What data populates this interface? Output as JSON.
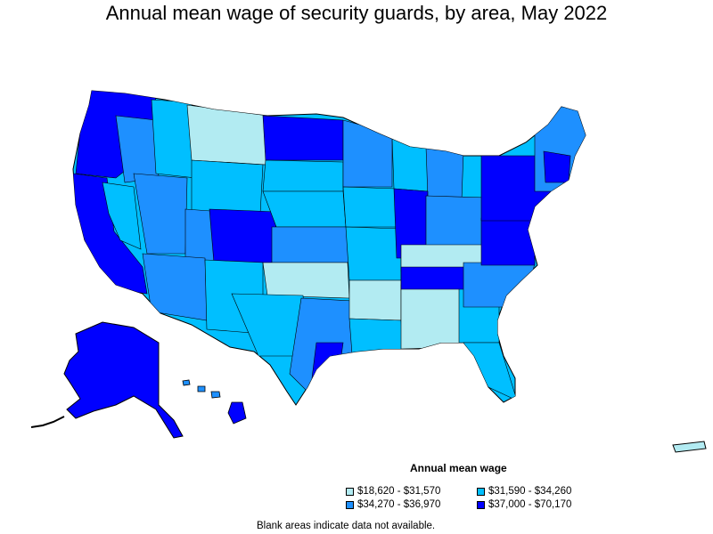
{
  "title": "Annual mean wage of security guards, by area, May 2022",
  "colors": {
    "bin1": "#b2ebf2",
    "bin2": "#00bfff",
    "bin3": "#1e90ff",
    "bin4": "#0000ff",
    "border": "#000000",
    "background": "#ffffff"
  },
  "legend": {
    "title": "Annual mean wage",
    "items": [
      {
        "label": "$18,620 - $31,570",
        "color": "#b2ebf2"
      },
      {
        "label": "$31,590 - $34,260",
        "color": "#00bfff"
      },
      {
        "label": "$34,270 - $36,970",
        "color": "#1e90ff"
      },
      {
        "label": "$37,000 - $70,170",
        "color": "#0000ff"
      }
    ]
  },
  "footnote": "Blank areas indicate data not available."
}
